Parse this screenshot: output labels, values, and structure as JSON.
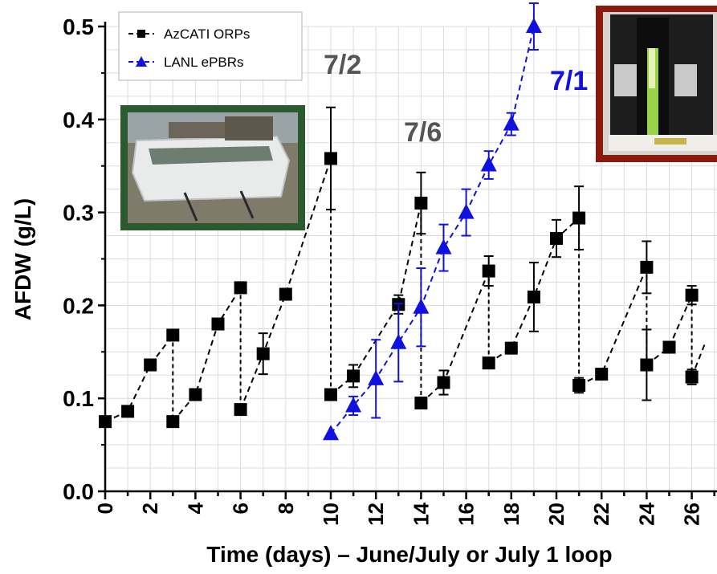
{
  "chart_data": {
    "type": "line",
    "xlabel": "Time (days) – June/July or July 1 loop",
    "ylabel": "AFDW (g/L)",
    "xlim": [
      0,
      26
    ],
    "ylim": [
      0,
      0.5
    ],
    "x_ticks": [
      "0",
      "2",
      "4",
      "6",
      "8",
      "10",
      "12",
      "14",
      "16",
      "18",
      "20",
      "22",
      "24",
      "26"
    ],
    "y_ticks": [
      "0.0",
      "0.1",
      "0.2",
      "0.3",
      "0.4",
      "0.5"
    ],
    "grid": true,
    "legend_position": "top-left",
    "series": [
      {
        "name": "AzCATI ORPs",
        "color": "#000000",
        "marker": "square",
        "segments": [
          [
            [
              0,
              0.075
            ],
            [
              1,
              0.086
            ],
            [
              2,
              0.136
            ],
            [
              3,
              0.168
            ]
          ],
          [
            [
              3,
              0.075
            ],
            [
              4,
              0.104
            ],
            [
              5,
              0.18
            ],
            [
              6,
              0.219
            ]
          ],
          [
            [
              6,
              0.088
            ],
            [
              7,
              0.148
            ],
            [
              8,
              0.212
            ],
            [
              10,
              0.358
            ]
          ],
          [
            [
              10,
              0.104
            ],
            [
              11,
              0.124
            ],
            [
              13,
              0.201
            ],
            [
              14,
              0.31
            ]
          ],
          [
            [
              14,
              0.095
            ],
            [
              15,
              0.117
            ],
            [
              17,
              0.237
            ]
          ],
          [
            [
              17,
              0.138
            ],
            [
              18,
              0.154
            ],
            [
              19,
              0.209
            ],
            [
              20,
              0.272
            ],
            [
              21,
              0.294
            ]
          ],
          [
            [
              21,
              0.114
            ],
            [
              22,
              0.126
            ],
            [
              24,
              0.241
            ]
          ],
          [
            [
              24,
              0.136
            ],
            [
              25,
              0.155
            ],
            [
              26,
              0.211
            ]
          ],
          [
            [
              26,
              0.123
            ],
            [
              26.6,
              0.16
            ]
          ]
        ],
        "error_bars": [
          {
            "x": 7,
            "y": 0.148,
            "err": 0.022
          },
          {
            "x": 10,
            "y": 0.358,
            "err": 0.055
          },
          {
            "x": 11,
            "y": 0.124,
            "err": 0.012
          },
          {
            "x": 13,
            "y": 0.201,
            "err": 0.01
          },
          {
            "x": 14,
            "y": 0.31,
            "err": 0.033
          },
          {
            "x": 15,
            "y": 0.117,
            "err": 0.013
          },
          {
            "x": 17,
            "y": 0.237,
            "err": 0.016
          },
          {
            "x": 19,
            "y": 0.209,
            "err": 0.037
          },
          {
            "x": 20,
            "y": 0.272,
            "err": 0.02
          },
          {
            "x": 21,
            "y": 0.294,
            "err": 0.034
          },
          {
            "x": 21,
            "y": 0.114,
            "err": 0.008
          },
          {
            "x": 24,
            "y": 0.241,
            "err": 0.028
          },
          {
            "x": 24,
            "y": 0.136,
            "err": 0.038
          },
          {
            "x": 26,
            "y": 0.211,
            "err": 0.01
          },
          {
            "x": 26,
            "y": 0.123,
            "err": 0.008
          }
        ]
      },
      {
        "name": "LANL ePBRs",
        "color": "#1010e0",
        "marker": "triangle",
        "segments": [
          [
            [
              10,
              0.062
            ],
            [
              11,
              0.092
            ],
            [
              12,
              0.121
            ],
            [
              13,
              0.16
            ],
            [
              14,
              0.198
            ],
            [
              15,
              0.262
            ],
            [
              16,
              0.3
            ],
            [
              17,
              0.351
            ],
            [
              18,
              0.395
            ],
            [
              19,
              0.5
            ]
          ]
        ],
        "error_bars": [
          {
            "x": 11,
            "y": 0.092,
            "err": 0.01
          },
          {
            "x": 12,
            "y": 0.121,
            "err": 0.042
          },
          {
            "x": 13,
            "y": 0.16,
            "err": 0.042
          },
          {
            "x": 14,
            "y": 0.198,
            "err": 0.042
          },
          {
            "x": 15,
            "y": 0.262,
            "err": 0.025
          },
          {
            "x": 16,
            "y": 0.3,
            "err": 0.025
          },
          {
            "x": 17,
            "y": 0.351,
            "err": 0.015
          },
          {
            "x": 18,
            "y": 0.395,
            "err": 0.012
          },
          {
            "x": 19,
            "y": 0.5,
            "err": 0.025
          }
        ]
      }
    ],
    "annotations": [
      {
        "text": "7/2",
        "color": "#555555"
      },
      {
        "text": "7/6",
        "color": "#555555"
      },
      {
        "text": "7/1",
        "color": "#1010e0"
      }
    ]
  },
  "insets": [
    {
      "icon": "outdoor-pond-photo",
      "border_color": "#2a5a2e"
    },
    {
      "icon": "photobioreactor-photo",
      "border_color": "#8a1a0e"
    }
  ]
}
